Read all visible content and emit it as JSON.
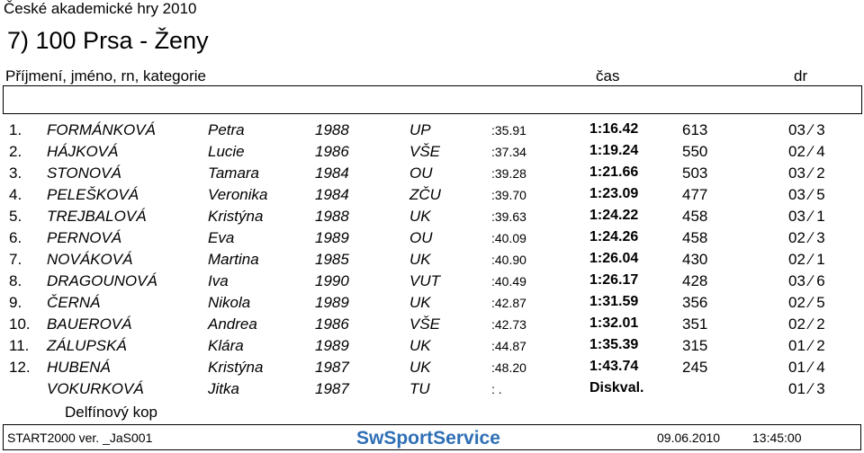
{
  "event": {
    "name": "České akademické hry 2010",
    "race_title": "7) 100 Prsa - Ženy"
  },
  "header": {
    "name_col": "Příjmení, jméno, rn, kategorie",
    "time_col": "čas",
    "dr_col": "dr"
  },
  "results": [
    {
      "rank": "1.",
      "surname": "FORMÁNKOVÁ",
      "first": "Petra",
      "year": "1988",
      "club": "UP",
      "split": ":35.91",
      "time": "1:16.42",
      "points": "613",
      "dr": "03 ∕ 3"
    },
    {
      "rank": "2.",
      "surname": "HÁJKOVÁ",
      "first": "Lucie",
      "year": "1986",
      "club": "VŠE",
      "split": ":37.34",
      "time": "1:19.24",
      "points": "550",
      "dr": "02 ∕ 4"
    },
    {
      "rank": "3.",
      "surname": "STONOVÁ",
      "first": "Tamara",
      "year": "1984",
      "club": "OU",
      "split": ":39.28",
      "time": "1:21.66",
      "points": "503",
      "dr": "03 ∕ 2"
    },
    {
      "rank": "4.",
      "surname": "PELEŠKOVÁ",
      "first": "Veronika",
      "year": "1984",
      "club": "ZČU",
      "split": ":39.70",
      "time": "1:23.09",
      "points": "477",
      "dr": "03 ∕ 5"
    },
    {
      "rank": "5.",
      "surname": "TREJBALOVÁ",
      "first": "Kristýna",
      "year": "1988",
      "club": "UK",
      "split": ":39.63",
      "time": "1:24.22",
      "points": "458",
      "dr": "03 ∕ 1"
    },
    {
      "rank": "6.",
      "surname": "PERNOVÁ",
      "first": "Eva",
      "year": "1989",
      "club": "OU",
      "split": ":40.09",
      "time": "1:24.26",
      "points": "458",
      "dr": "02 ∕ 3"
    },
    {
      "rank": "7.",
      "surname": "NOVÁKOVÁ",
      "first": "Martina",
      "year": "1985",
      "club": "UK",
      "split": ":40.90",
      "time": "1:26.04",
      "points": "430",
      "dr": "02 ∕ 1"
    },
    {
      "rank": "8.",
      "surname": "DRAGOUNOVÁ",
      "first": "Iva",
      "year": "1990",
      "club": "VUT",
      "split": ":40.49",
      "time": "1:26.17",
      "points": "428",
      "dr": "03 ∕ 6"
    },
    {
      "rank": "9.",
      "surname": "ČERNÁ",
      "first": "Nikola",
      "year": "1989",
      "club": "UK",
      "split": ":42.87",
      "time": "1:31.59",
      "points": "356",
      "dr": "02 ∕ 5"
    },
    {
      "rank": "10.",
      "surname": "BAUEROVÁ",
      "first": "Andrea",
      "year": "1986",
      "club": "VŠE",
      "split": ":42.73",
      "time": "1:32.01",
      "points": "351",
      "dr": "02 ∕ 2"
    },
    {
      "rank": "11.",
      "surname": "ZÁLUPSKÁ",
      "first": "Klára",
      "year": "1989",
      "club": "UK",
      "split": ":44.87",
      "time": "1:35.39",
      "points": "315",
      "dr": "01 ∕ 2"
    },
    {
      "rank": "12.",
      "surname": "HUBENÁ",
      "first": "Kristýna",
      "year": "1987",
      "club": "UK",
      "split": ":48.20",
      "time": "1:43.74",
      "points": "245",
      "dr": "01 ∕ 4"
    },
    {
      "rank": "",
      "surname": "VOKURKOVÁ",
      "first": "Jitka",
      "year": "1987",
      "club": "TU",
      "split": ": .",
      "time": "Diskval.",
      "points": "",
      "dr": "01 ∕ 3"
    }
  ],
  "note": "Delfínový kop",
  "footer": {
    "software": "START2000 ver. _JaS001",
    "logo_text": "SwSportService",
    "date": "09.06.2010",
    "time": "13:45:00"
  },
  "colors": {
    "logo_blue": "#2f6fb5",
    "logo_light": "#4f9ad6"
  }
}
